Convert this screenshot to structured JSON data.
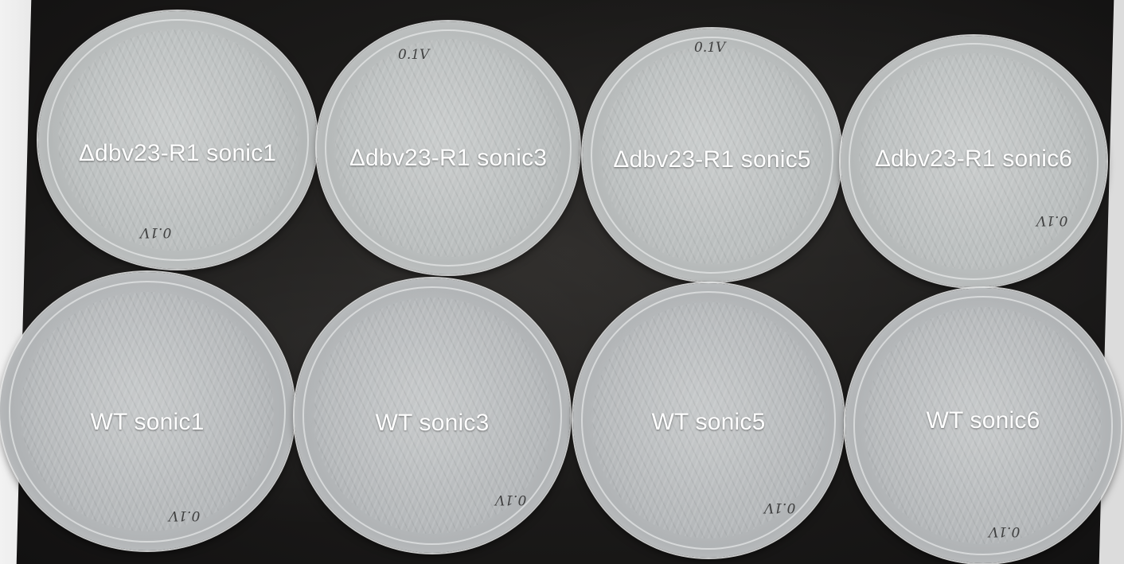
{
  "plates": {
    "top": [
      {
        "label": "Δdbv23-R1 sonic1",
        "mark": "0.1V"
      },
      {
        "label": "Δdbv23-R1 sonic3",
        "mark": "0.1V"
      },
      {
        "label": "Δdbv23-R1 sonic5",
        "mark": "0.1V"
      },
      {
        "label": "Δdbv23-R1 sonic6",
        "mark": "0.1V"
      }
    ],
    "bottom": [
      {
        "label": "WT sonic1",
        "mark": "0.1V"
      },
      {
        "label": "WT sonic3",
        "mark": "0.1V"
      },
      {
        "label": "WT sonic5",
        "mark": "0.1V"
      },
      {
        "label": "WT sonic6",
        "mark": "0.1V"
      }
    ]
  }
}
